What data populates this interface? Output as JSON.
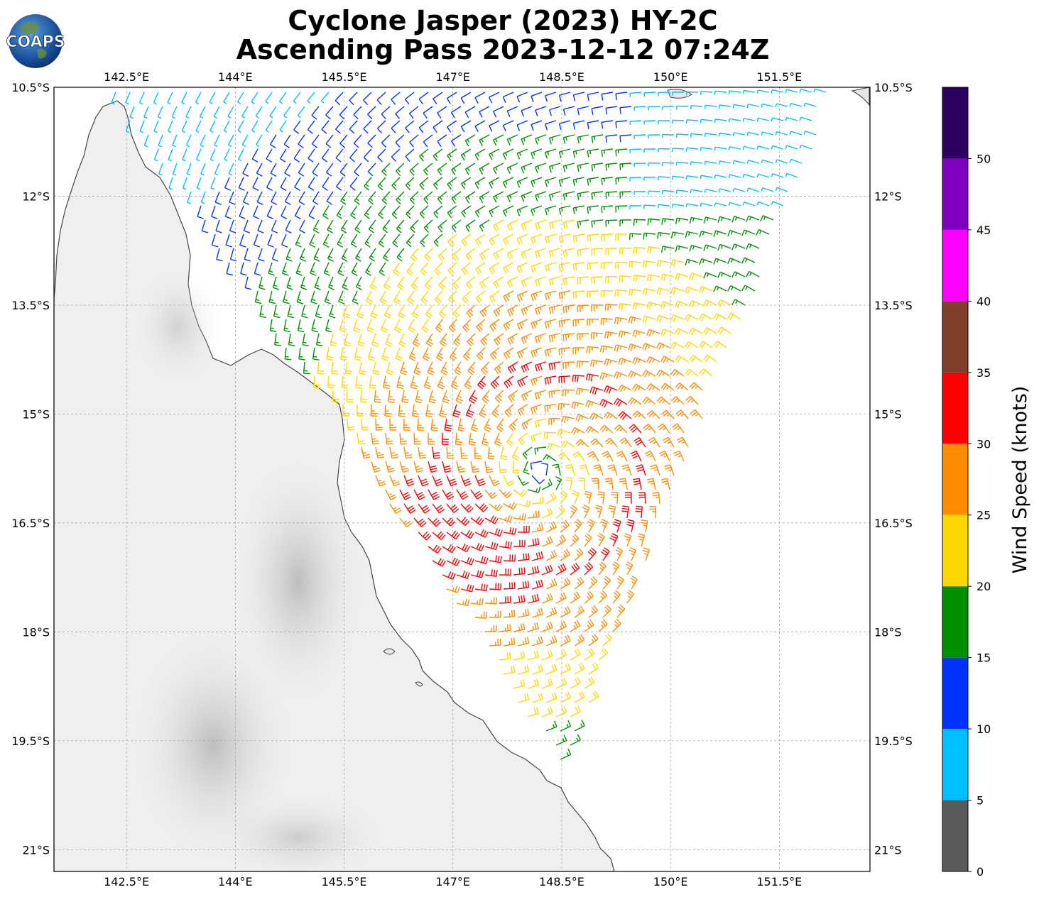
{
  "title": {
    "line1": "Cyclone Jasper (2023) HY-2C",
    "line2": "Ascending Pass 2023-12-12 07:24Z"
  },
  "logo": {
    "text": "COAPS",
    "icon": "globe-icon"
  },
  "map": {
    "lon_range": [
      141.5,
      152.75
    ],
    "lat_range": [
      -21.3,
      -10.5
    ],
    "lon_ticks": [
      {
        "value": 142.5,
        "label": "142.5°E"
      },
      {
        "value": 144.0,
        "label": "144°E"
      },
      {
        "value": 145.5,
        "label": "145.5°E"
      },
      {
        "value": 147.0,
        "label": "147°E"
      },
      {
        "value": 148.5,
        "label": "148.5°E"
      },
      {
        "value": 150.0,
        "label": "150°E"
      },
      {
        "value": 151.5,
        "label": "151.5°E"
      }
    ],
    "lat_ticks": [
      {
        "value": -10.5,
        "label": "10.5°S"
      },
      {
        "value": -12.0,
        "label": "12°S"
      },
      {
        "value": -13.5,
        "label": "13.5°S"
      },
      {
        "value": -15.0,
        "label": "15°S"
      },
      {
        "value": -16.5,
        "label": "16.5°S"
      },
      {
        "value": -18.0,
        "label": "18°S"
      },
      {
        "value": -19.5,
        "label": "19.5°S"
      },
      {
        "value": -21.0,
        "label": "21°S"
      }
    ],
    "grid": true,
    "coastline_color": "#444444",
    "land_color": "#ececec",
    "storm_center": {
      "lon": 148.2,
      "lat": -15.8
    },
    "swath_corners": [
      {
        "lon": 142.2,
        "lat": -10.5
      },
      {
        "lon": 152.3,
        "lat": -10.5
      },
      {
        "lon": 148.5,
        "lat": -19.9
      },
      {
        "lon": 144.5,
        "lat": -13.8
      }
    ]
  },
  "colorbar": {
    "label": "Wind Speed (knots)",
    "ticks": [
      "0",
      "5",
      "10",
      "15",
      "20",
      "25",
      "30",
      "35",
      "40",
      "45",
      "50"
    ],
    "bins": [
      {
        "min": 0,
        "max": 5,
        "color": "#5a5a5a"
      },
      {
        "min": 5,
        "max": 10,
        "color": "#00bfff"
      },
      {
        "min": 10,
        "max": 15,
        "color": "#0033ff"
      },
      {
        "min": 15,
        "max": 20,
        "color": "#009000"
      },
      {
        "min": 20,
        "max": 25,
        "color": "#ffd700"
      },
      {
        "min": 25,
        "max": 30,
        "color": "#ff8c00"
      },
      {
        "min": 30,
        "max": 35,
        "color": "#ff0000"
      },
      {
        "min": 35,
        "max": 40,
        "color": "#7f3f2a"
      },
      {
        "min": 40,
        "max": 45,
        "color": "#ff00ff"
      },
      {
        "min": 45,
        "max": 50,
        "color": "#8000c0"
      },
      {
        "min": 50,
        "max": 55,
        "color": "#2b0060"
      }
    ]
  }
}
